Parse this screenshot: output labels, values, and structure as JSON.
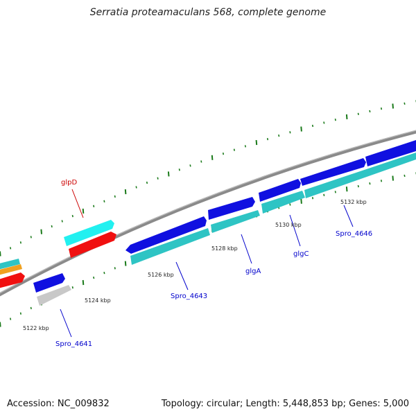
{
  "title": "Serratia proteamaculans 568, complete genome",
  "footer": {
    "accession": "Accession: NC_009832",
    "summary": "Topology: circular; Length: 5,448,853 bp; Genes: 5,000"
  },
  "colors": {
    "backbone": "#888888",
    "tick": "#1a7a1a",
    "blue": "#1010e0",
    "cyan": "#2ec4c4",
    "brightcyan": "#22f0f0",
    "red": "#f01010",
    "orange": "#f0a020",
    "gray": "#c0c0c0",
    "label_red": "#cc0000",
    "label_blue": "#0000cc"
  },
  "kbp_labels": [
    "5122 kbp",
    "5124 kbp",
    "5126 kbp",
    "5128 kbp",
    "5130 kbp",
    "5132 kbp"
  ],
  "gene_labels": [
    "glpD",
    "Spro_4641",
    "Spro_4643",
    "glgA",
    "glgC",
    "Spro_4646"
  ]
}
